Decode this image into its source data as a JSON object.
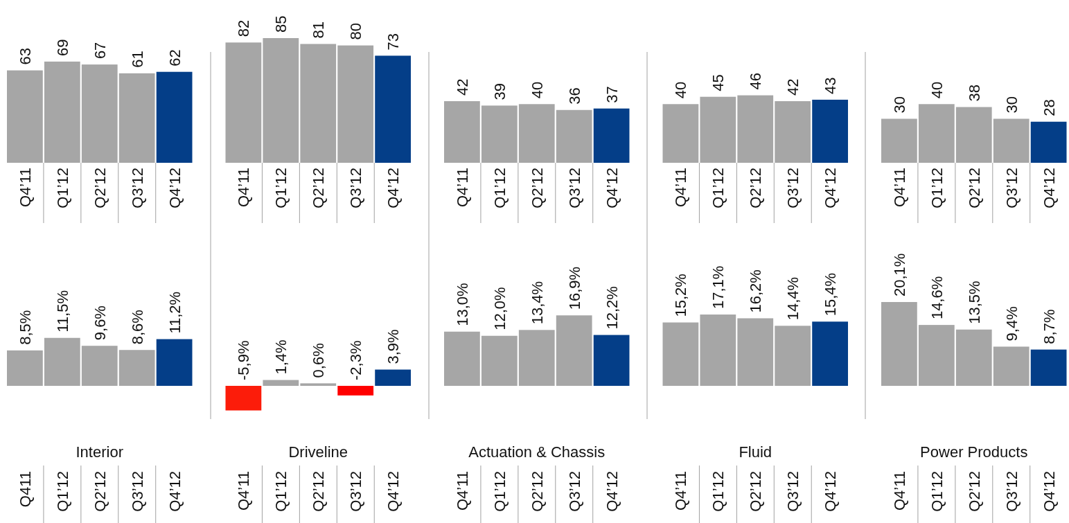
{
  "chart_data": [
    {
      "type": "bar",
      "categories": [
        "Q4’11",
        "Q1’12",
        "Q2’12",
        "Q3’12",
        "Q4’12"
      ],
      "values": [
        63,
        69,
        67,
        61,
        62
      ],
      "colors": [
        "#a6a6a6",
        "#a6a6a6",
        "#a6a6a6",
        "#a6a6a6",
        "#043e88"
      ],
      "data_labels": true
    },
    {
      "type": "bar",
      "categories": [
        "Q4’11",
        "Q1’12",
        "Q2’12",
        "Q3’12",
        "Q4’12"
      ],
      "values": [
        82,
        85,
        81,
        80,
        73
      ],
      "colors": [
        "#a6a6a6",
        "#a6a6a6",
        "#a6a6a6",
        "#a6a6a6",
        "#043e88"
      ],
      "data_labels": true
    },
    {
      "type": "bar",
      "categories": [
        "Q4’11",
        "Q1’12",
        "Q2’12",
        "Q3’12",
        "Q4’12"
      ],
      "values": [
        42,
        39,
        40,
        36,
        37
      ],
      "colors": [
        "#a6a6a6",
        "#a6a6a6",
        "#a6a6a6",
        "#a6a6a6",
        "#043e88"
      ],
      "data_labels": true
    },
    {
      "type": "bar",
      "categories": [
        "Q4’11",
        "Q1’12",
        "Q2’12",
        "Q3’12",
        "Q4’12"
      ],
      "values": [
        40,
        45,
        46,
        42,
        43
      ],
      "colors": [
        "#a6a6a6",
        "#a6a6a6",
        "#a6a6a6",
        "#a6a6a6",
        "#043e88"
      ],
      "data_labels": true
    },
    {
      "type": "bar",
      "categories": [
        "Q4’11",
        "Q1’12",
        "Q2’12",
        "Q3’12",
        "Q4’12"
      ],
      "values": [
        30,
        40,
        38,
        30,
        28
      ],
      "colors": [
        "#a6a6a6",
        "#a6a6a6",
        "#a6a6a6",
        "#a6a6a6",
        "#043e88"
      ],
      "data_labels": true
    },
    {
      "type": "bar",
      "title": "Interior",
      "categories": [
        "Q411",
        "Q1’12",
        "Q2’12",
        "Q3’12",
        "Q4’12"
      ],
      "values": [
        8.5,
        11.5,
        9.6,
        8.6,
        11.2
      ],
      "value_labels": [
        "8,5%",
        "11,5%",
        "9,6%",
        "8,6%",
        "11,2%"
      ],
      "colors": [
        "#a6a6a6",
        "#a6a6a6",
        "#a6a6a6",
        "#a6a6a6",
        "#043e88"
      ]
    },
    {
      "type": "bar",
      "title": "Driveline",
      "categories": [
        "Q4’11",
        "Q1’12",
        "Q2’12",
        "Q3’12",
        "Q4’12"
      ],
      "values": [
        -5.9,
        1.4,
        0.6,
        -2.3,
        3.9
      ],
      "value_labels": [
        "-5,9%",
        "1,4%",
        "0,6%",
        "-2,3%",
        "3,9%"
      ],
      "colors": [
        "#fc1c0a",
        "#a6a6a6",
        "#a6a6a6",
        "#ff0000",
        "#043e88"
      ]
    },
    {
      "type": "bar",
      "title": "Actuation & Chassis",
      "categories": [
        "Q4’11",
        "Q1’12",
        "Q2’12",
        "Q3’12",
        "Q4’12"
      ],
      "values": [
        13.0,
        12.0,
        13.4,
        16.9,
        12.2
      ],
      "value_labels": [
        "13,0%",
        "12,0%",
        "13,4%",
        "16,9%",
        "12,2%"
      ],
      "colors": [
        "#a6a6a6",
        "#a6a6a6",
        "#a6a6a6",
        "#a6a6a6",
        "#043e88"
      ]
    },
    {
      "type": "bar",
      "title": "Fluid",
      "categories": [
        "Q4’11",
        "Q1’12",
        "Q2’12",
        "Q3’12",
        "Q4’12"
      ],
      "values": [
        15.2,
        17.1,
        16.2,
        14.4,
        15.4
      ],
      "value_labels": [
        "15,2%",
        "17,1%",
        "16,2%",
        "14,4%",
        "15,4%"
      ],
      "colors": [
        "#a6a6a6",
        "#a6a6a6",
        "#a6a6a6",
        "#a6a6a6",
        "#043e88"
      ]
    },
    {
      "type": "bar",
      "title": "Power Products",
      "categories": [
        "Q4’11",
        "Q1’12",
        "Q2’12",
        "Q3’12",
        "Q4’12"
      ],
      "values": [
        20.1,
        14.6,
        13.5,
        9.4,
        8.7
      ],
      "value_labels": [
        "20,1%",
        "14,6%",
        "13,5%",
        "9,4%",
        "8,7%"
      ],
      "colors": [
        "#a6a6a6",
        "#a6a6a6",
        "#a6a6a6",
        "#a6a6a6",
        "#043e88"
      ]
    }
  ]
}
